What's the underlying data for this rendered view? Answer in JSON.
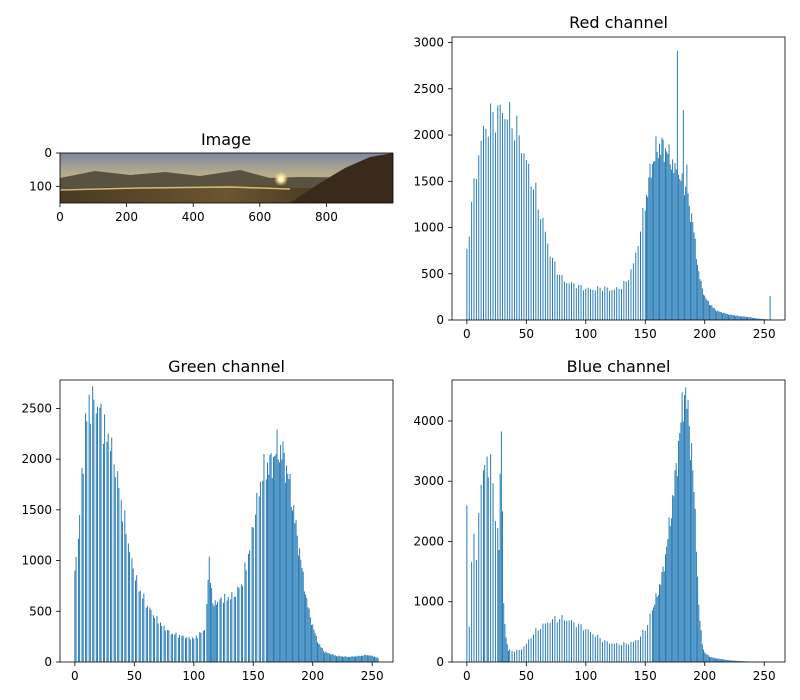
{
  "image_panel": {
    "title": "Image",
    "x_ticks": [
      "0",
      "200",
      "400",
      "600",
      "800"
    ],
    "y_ticks": [
      "0",
      "100"
    ],
    "x_range": [
      0,
      1000
    ],
    "y_range": [
      0,
      150
    ]
  },
  "chart_data": [
    {
      "type": "bar",
      "title": "Red channel",
      "xlabel": "",
      "ylabel": "",
      "xlim": [
        -12.5,
        267.5
      ],
      "ylim": [
        0,
        3060
      ],
      "x_ticks": [
        0,
        50,
        100,
        150,
        200,
        250
      ],
      "y_ticks": [
        0,
        500,
        1000,
        1500,
        2000,
        2500,
        3000
      ],
      "color": "#1f77b4",
      "profile": [
        [
          0,
          770
        ],
        [
          5,
          1350
        ],
        [
          10,
          1800
        ],
        [
          15,
          2080
        ],
        [
          20,
          2170
        ],
        [
          25,
          2240
        ],
        [
          30,
          2260
        ],
        [
          35,
          2200
        ],
        [
          40,
          2100
        ],
        [
          45,
          1950
        ],
        [
          50,
          1700
        ],
        [
          55,
          1500
        ],
        [
          60,
          1250
        ],
        [
          65,
          1000
        ],
        [
          70,
          720
        ],
        [
          75,
          560
        ],
        [
          80,
          450
        ],
        [
          85,
          400
        ],
        [
          90,
          390
        ],
        [
          95,
          360
        ],
        [
          100,
          340
        ],
        [
          105,
          330
        ],
        [
          110,
          340
        ],
        [
          115,
          350
        ],
        [
          120,
          330
        ],
        [
          125,
          330
        ],
        [
          130,
          360
        ],
        [
          135,
          430
        ],
        [
          140,
          600
        ],
        [
          145,
          900
        ],
        [
          150,
          1250
        ],
        [
          155,
          1650
        ],
        [
          160,
          1850
        ],
        [
          165,
          1880
        ],
        [
          170,
          1800
        ],
        [
          175,
          1600
        ],
        [
          180,
          1500
        ],
        [
          185,
          1350
        ],
        [
          190,
          1050
        ],
        [
          195,
          500
        ],
        [
          200,
          250
        ],
        [
          205,
          160
        ],
        [
          210,
          100
        ],
        [
          215,
          80
        ],
        [
          220,
          60
        ],
        [
          225,
          50
        ],
        [
          230,
          40
        ],
        [
          235,
          35
        ],
        [
          240,
          25
        ],
        [
          245,
          15
        ],
        [
          250,
          10
        ],
        [
          254,
          5
        ],
        [
          255,
          260
        ]
      ],
      "spikes": [
        [
          165,
          1950
        ],
        [
          170,
          1900
        ],
        [
          177,
          2910
        ],
        [
          182,
          2270
        ],
        [
          185,
          1680
        ]
      ],
      "gaps": [
        1,
        3,
        5,
        7,
        9,
        11,
        13,
        15,
        17,
        19,
        21,
        23,
        25,
        27,
        29,
        31,
        33,
        35,
        37,
        39,
        41,
        43,
        45,
        47,
        49,
        51,
        53,
        55,
        57,
        59,
        61,
        63,
        65,
        67,
        69,
        71,
        73,
        75,
        77,
        79,
        81,
        83,
        85,
        87,
        89,
        91,
        93,
        95,
        97,
        99,
        101,
        103,
        105,
        107,
        109,
        111,
        113,
        115,
        117,
        119,
        121,
        123,
        125,
        127,
        129,
        131,
        133,
        135,
        137,
        139,
        141,
        143,
        145,
        147,
        149
      ]
    },
    {
      "type": "bar",
      "title": "Green channel",
      "xlabel": "",
      "ylabel": "",
      "xlim": [
        -12.5,
        267.5
      ],
      "ylim": [
        0,
        2780
      ],
      "x_ticks": [
        0,
        50,
        100,
        150,
        200,
        250
      ],
      "y_ticks": [
        0,
        500,
        1000,
        1500,
        2000,
        2500
      ],
      "color": "#1f77b4",
      "profile": [
        [
          0,
          900
        ],
        [
          3,
          1200
        ],
        [
          6,
          1800
        ],
        [
          9,
          2300
        ],
        [
          12,
          2600
        ],
        [
          15,
          2620
        ],
        [
          18,
          2640
        ],
        [
          21,
          2550
        ],
        [
          25,
          2300
        ],
        [
          30,
          2100
        ],
        [
          35,
          1800
        ],
        [
          40,
          1500
        ],
        [
          45,
          1200
        ],
        [
          50,
          900
        ],
        [
          55,
          700
        ],
        [
          60,
          560
        ],
        [
          65,
          470
        ],
        [
          70,
          400
        ],
        [
          75,
          350
        ],
        [
          80,
          300
        ],
        [
          85,
          270
        ],
        [
          90,
          250
        ],
        [
          95,
          230
        ],
        [
          100,
          230
        ],
        [
          105,
          280
        ],
        [
          110,
          350
        ],
        [
          113,
          1020
        ],
        [
          116,
          550
        ],
        [
          120,
          620
        ],
        [
          125,
          640
        ],
        [
          130,
          620
        ],
        [
          135,
          650
        ],
        [
          140,
          750
        ],
        [
          145,
          1000
        ],
        [
          150,
          1400
        ],
        [
          155,
          1750
        ],
        [
          160,
          1900
        ],
        [
          165,
          1950
        ],
        [
          170,
          2100
        ],
        [
          175,
          2050
        ],
        [
          180,
          1800
        ],
        [
          185,
          1400
        ],
        [
          190,
          1000
        ],
        [
          195,
          600
        ],
        [
          200,
          350
        ],
        [
          205,
          180
        ],
        [
          210,
          100
        ],
        [
          220,
          60
        ],
        [
          230,
          50
        ],
        [
          240,
          60
        ],
        [
          245,
          70
        ],
        [
          250,
          60
        ],
        [
          255,
          40
        ]
      ],
      "spikes": [],
      "gaps": [
        2,
        5,
        8,
        11,
        14,
        17,
        20,
        23,
        26,
        29,
        32,
        35,
        38,
        41,
        44,
        47,
        50,
        53,
        56,
        59,
        62,
        65,
        68,
        71,
        74,
        77,
        80,
        83,
        86,
        89,
        92,
        95,
        98,
        101,
        104,
        107,
        110,
        121,
        124,
        127,
        130,
        133,
        136,
        139,
        142,
        145,
        148,
        151,
        154,
        157,
        160
      ]
    },
    {
      "type": "bar",
      "title": "Blue channel",
      "xlabel": "",
      "ylabel": "",
      "xlim": [
        -12.5,
        267.5
      ],
      "ylim": [
        0,
        4680
      ],
      "x_ticks": [
        0,
        50,
        100,
        150,
        200,
        250
      ],
      "y_ticks": [
        0,
        1000,
        2000,
        3000,
        4000
      ],
      "color": "#1f77b4",
      "profile": [
        [
          0,
          2600
        ],
        [
          2,
          650
        ],
        [
          4,
          1600
        ],
        [
          6,
          2000
        ],
        [
          8,
          1800
        ],
        [
          10,
          2500
        ],
        [
          12,
          2900
        ],
        [
          15,
          3150
        ],
        [
          18,
          3300
        ],
        [
          20,
          3200
        ],
        [
          22,
          2900
        ],
        [
          25,
          2400
        ],
        [
          27,
          1900
        ],
        [
          29,
          4150
        ],
        [
          31,
          900
        ],
        [
          33,
          400
        ],
        [
          35,
          200
        ],
        [
          40,
          180
        ],
        [
          45,
          200
        ],
        [
          50,
          300
        ],
        [
          55,
          450
        ],
        [
          60,
          550
        ],
        [
          65,
          620
        ],
        [
          70,
          680
        ],
        [
          75,
          720
        ],
        [
          80,
          720
        ],
        [
          85,
          700
        ],
        [
          90,
          650
        ],
        [
          95,
          600
        ],
        [
          100,
          550
        ],
        [
          105,
          480
        ],
        [
          110,
          420
        ],
        [
          115,
          350
        ],
        [
          120,
          320
        ],
        [
          125,
          300
        ],
        [
          130,
          300
        ],
        [
          135,
          310
        ],
        [
          140,
          330
        ],
        [
          145,
          400
        ],
        [
          150,
          550
        ],
        [
          155,
          800
        ],
        [
          160,
          1100
        ],
        [
          165,
          1500
        ],
        [
          170,
          2200
        ],
        [
          175,
          3000
        ],
        [
          178,
          3600
        ],
        [
          181,
          4150
        ],
        [
          183,
          4420
        ],
        [
          185,
          4300
        ],
        [
          187,
          3900
        ],
        [
          189,
          3500
        ],
        [
          191,
          2800
        ],
        [
          193,
          2000
        ],
        [
          195,
          900
        ],
        [
          198,
          300
        ],
        [
          200,
          150
        ],
        [
          205,
          80
        ],
        [
          210,
          60
        ],
        [
          220,
          30
        ],
        [
          230,
          15
        ],
        [
          240,
          5
        ],
        [
          255,
          2
        ]
      ],
      "spikes": [
        [
          179,
          3800
        ],
        [
          183,
          4430
        ],
        [
          186,
          4350
        ]
      ],
      "gaps": [
        1,
        3,
        5,
        7,
        9,
        11,
        13,
        16,
        19,
        21,
        23,
        25,
        37,
        39,
        41,
        43,
        45,
        47,
        49,
        51,
        53,
        55,
        57,
        59,
        61,
        63,
        65,
        67,
        69,
        71,
        73,
        75,
        77,
        79,
        81,
        83,
        85,
        87,
        89,
        91,
        93,
        95,
        97,
        99,
        101,
        103,
        105,
        107,
        109,
        111,
        113,
        115,
        117,
        119,
        121,
        123,
        125,
        127,
        129,
        131,
        133,
        135,
        137,
        139,
        141,
        143,
        145,
        147,
        149,
        151,
        153,
        155
      ]
    }
  ]
}
